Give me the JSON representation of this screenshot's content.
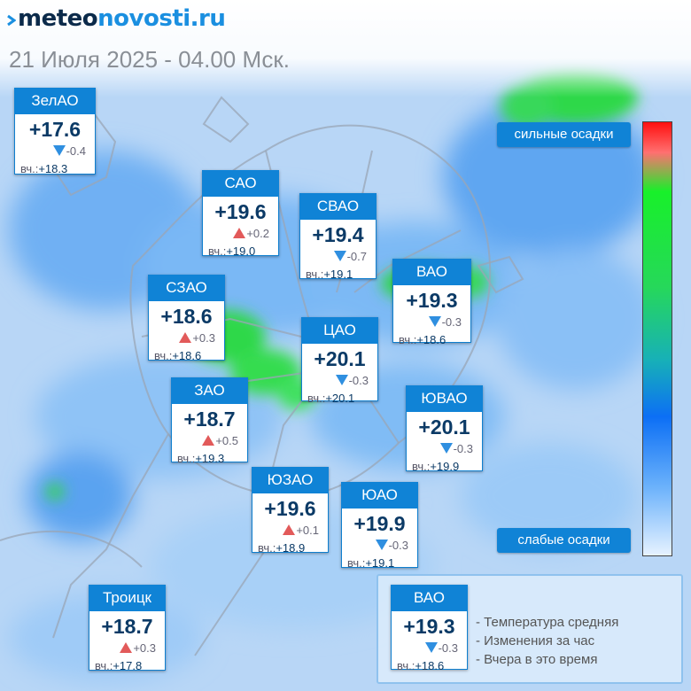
{
  "site": {
    "logo_prefix": "meteo",
    "logo_suffix": "novosti.ru",
    "date_line": "21 Июля 2025 - 04.00 Мск."
  },
  "colors": {
    "header_blue": "#1083d6",
    "temp_text": "#0b3a66",
    "increase_arrow": "#e25a5a",
    "decrease_arrow": "#2f8fe0",
    "precip_heavy": "#ff1010",
    "precip_mid": "#18f02a",
    "precip_light": "#e6f2ff"
  },
  "scale": {
    "top_label": "сильные осадки",
    "bottom_label": "слабые осадки"
  },
  "districts": [
    {
      "name": "ЗелАО",
      "temp": "+17.6",
      "dir": "down",
      "change": "-0.4",
      "yesterday_label": "вч.:",
      "yesterday": "+18.3"
    },
    {
      "name": "САО",
      "temp": "+19.6",
      "dir": "up",
      "change": "+0.2",
      "yesterday_label": "вч.:",
      "yesterday": "+19.0"
    },
    {
      "name": "СВАО",
      "temp": "+19.4",
      "dir": "down",
      "change": "-0.7",
      "yesterday_label": "вч.:",
      "yesterday": "+19.1"
    },
    {
      "name": "ВАО",
      "temp": "+19.3",
      "dir": "down",
      "change": "-0.3",
      "yesterday_label": "вч.:",
      "yesterday": "+18.6"
    },
    {
      "name": "СЗАО",
      "temp": "+18.6",
      "dir": "up",
      "change": "+0.3",
      "yesterday_label": "вч.:",
      "yesterday": "+18.6"
    },
    {
      "name": "ЦАО",
      "temp": "+20.1",
      "dir": "down",
      "change": "-0.3",
      "yesterday_label": "вч.:",
      "yesterday": "+20.1"
    },
    {
      "name": "ЗАО",
      "temp": "+18.7",
      "dir": "up",
      "change": "+0.5",
      "yesterday_label": "вч.:",
      "yesterday": "+19.3"
    },
    {
      "name": "ЮВАО",
      "temp": "+20.1",
      "dir": "down",
      "change": "-0.3",
      "yesterday_label": "вч.:",
      "yesterday": "+19.9"
    },
    {
      "name": "ЮЗАО",
      "temp": "+19.6",
      "dir": "up",
      "change": "+0.1",
      "yesterday_label": "вч.:",
      "yesterday": "+18.9"
    },
    {
      "name": "ЮАО",
      "temp": "+19.9",
      "dir": "down",
      "change": "-0.3",
      "yesterday_label": "вч.:",
      "yesterday": "+19.1"
    },
    {
      "name": "Троицк",
      "temp": "+18.7",
      "dir": "up",
      "change": "+0.3",
      "yesterday_label": "вч.:",
      "yesterday": "+17.8"
    }
  ],
  "legend": {
    "sample": {
      "name": "ВАО",
      "temp": "+19.3",
      "dir": "down",
      "change": "-0.3",
      "yesterday_label": "вч.:",
      "yesterday": "+18.6"
    },
    "lines": [
      "- Температура средняя",
      "- Изменения за час",
      "- Вчера в это время"
    ]
  }
}
